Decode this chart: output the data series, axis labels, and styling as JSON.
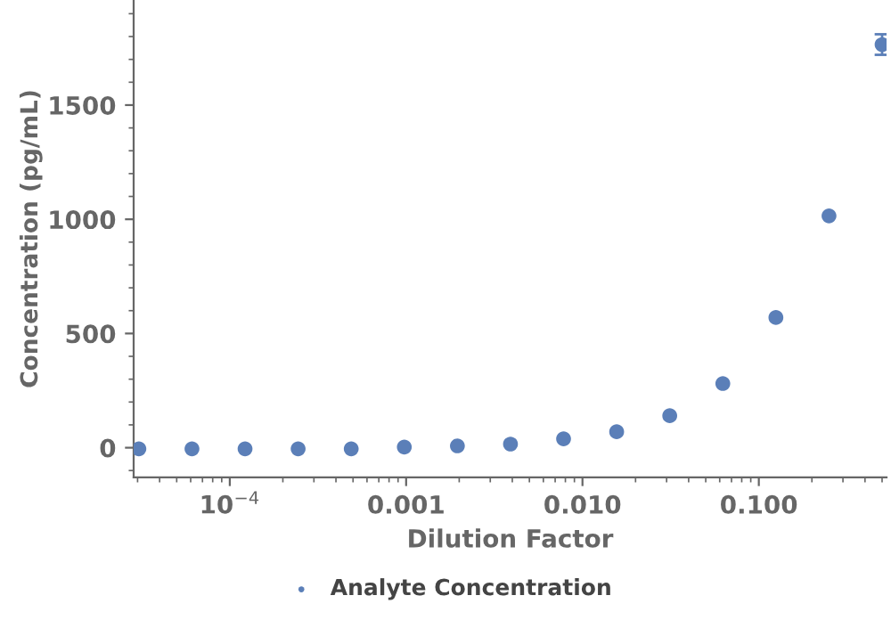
{
  "chart_data": {
    "type": "scatter",
    "xlabel": "Dilution Factor",
    "ylabel": "Concentration (pg/mL)",
    "x": [
      0.5,
      0.25,
      0.125,
      0.0625,
      0.03125,
      0.015625,
      0.0078125,
      0.00390625,
      0.001953125,
      0.0009765625,
      0.00048828125,
      0.000244140625,
      0.0001220703125,
      6.103515625e-05,
      3.0517578125e-05
    ],
    "series": [
      {
        "name": "Analyte Concentration",
        "color": "#5b7fb8",
        "values": [
          1765,
          1015,
          570,
          281,
          140,
          70,
          39,
          16,
          8,
          3,
          -5,
          -5,
          -5,
          -5,
          -5
        ],
        "errors": [
          45,
          null,
          null,
          null,
          null,
          null,
          null,
          null,
          null,
          null,
          null,
          null,
          null,
          null,
          null
        ]
      }
    ],
    "log": "x",
    "xlim": [
      2.85e-05,
      0.53
    ],
    "ylim": [
      -130,
      1960
    ],
    "xticks": [
      {
        "value": 0.0001,
        "label": "10$^{−4}$"
      },
      {
        "value": 0.001,
        "label": "0.001"
      },
      {
        "value": 0.01,
        "label": "0.010"
      },
      {
        "value": 0.1,
        "label": "0.100"
      }
    ],
    "yticks": [
      0,
      500,
      1000,
      1500
    ],
    "marker": "circle",
    "grid": false,
    "legend": "bottom"
  }
}
